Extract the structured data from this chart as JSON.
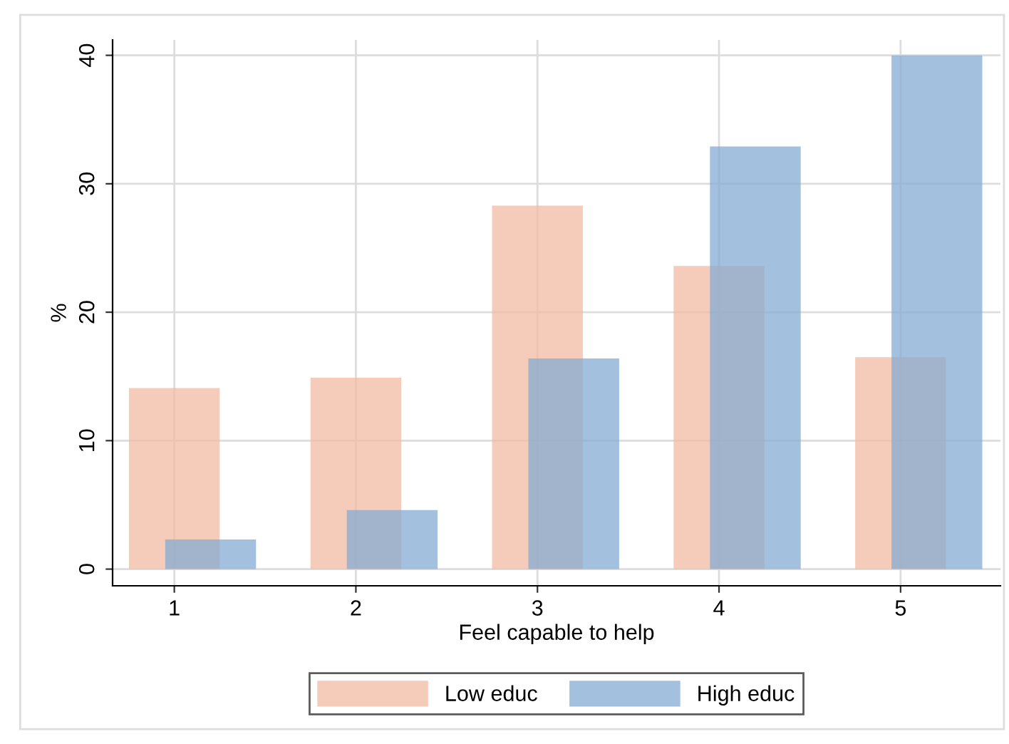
{
  "chart_data": {
    "type": "bar",
    "xlabel": "Feel capable to help",
    "ylabel": "%",
    "series": [
      {
        "name": "Low educ",
        "color": "#f5cbb9",
        "x": [
          1,
          2,
          3,
          4,
          5
        ],
        "values": [
          14.1,
          14.9,
          28.3,
          23.6,
          16.5
        ]
      },
      {
        "name": "High educ",
        "color": "#a3c1de",
        "x": [
          1.2,
          2.2,
          3.2,
          4.2,
          5.2
        ],
        "values": [
          2.3,
          4.6,
          16.4,
          32.9,
          40.0
        ]
      }
    ],
    "xlim": [
      0.66,
      5.55
    ],
    "xticks": [
      1,
      2,
      3,
      4,
      5
    ],
    "ylim": [
      -1.3,
      41.2
    ],
    "yticks": [
      0,
      10,
      20,
      30,
      40
    ],
    "grid": true,
    "legend": "bottom"
  }
}
